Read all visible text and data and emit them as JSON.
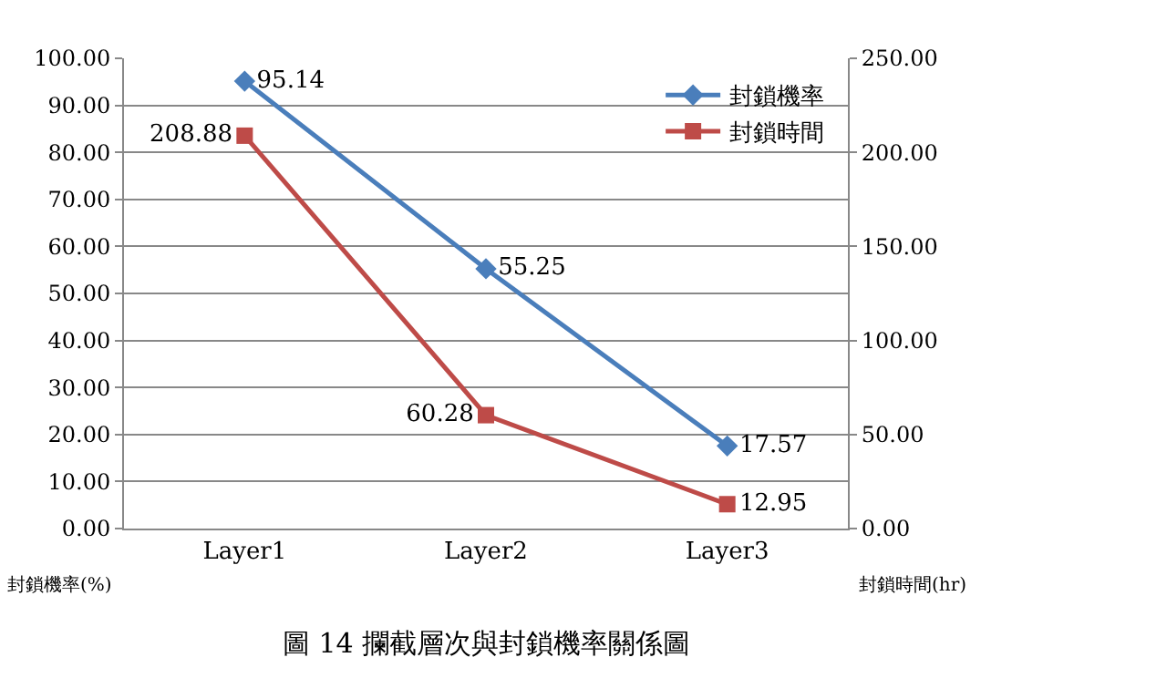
{
  "chart_data": {
    "type": "line",
    "title": "圖 14 攔截層次與封鎖機率關係圖",
    "ylabel": "封鎖機率(%)",
    "y2label": "封鎖時間(hr)",
    "categories": [
      "Layer1",
      "Layer2",
      "Layer3"
    ],
    "series": [
      {
        "name": "封鎖機率",
        "color": "#4a7ebb",
        "values": [
          95.14,
          55.25,
          17.57
        ],
        "marker": "diamond"
      },
      {
        "name": "封鎖時間",
        "color": "#be4b48",
        "values": [
          208.88,
          60.28,
          12.95
        ],
        "marker": "square",
        "axis": "y2"
      }
    ],
    "ylim": [
      0,
      100
    ],
    "yticks": [
      {
        "value": 0,
        "label": "0.00"
      },
      {
        "value": 10,
        "label": "10.00"
      },
      {
        "value": 20,
        "label": "20.00"
      },
      {
        "value": 30,
        "label": "30.00"
      },
      {
        "value": 40,
        "label": "40.00"
      },
      {
        "value": 50,
        "label": "50.00"
      },
      {
        "value": 60,
        "label": "60.00"
      },
      {
        "value": 70,
        "label": "70.00"
      },
      {
        "value": 80,
        "label": "80.00"
      },
      {
        "value": 90,
        "label": "90.00"
      },
      {
        "value": 100,
        "label": "100.00"
      }
    ],
    "y2lim": [
      0,
      250
    ],
    "y2ticks": [
      {
        "value": 0,
        "label": "0.00"
      },
      {
        "value": 50,
        "label": "50.00"
      },
      {
        "value": 100,
        "label": "100.00"
      },
      {
        "value": 150,
        "label": "150.00"
      },
      {
        "value": 200,
        "label": "200.00"
      },
      {
        "value": 250,
        "label": "250.00"
      }
    ],
    "grid": "y",
    "legend": "top right",
    "data_labels": true,
    "line_style": "solid"
  }
}
